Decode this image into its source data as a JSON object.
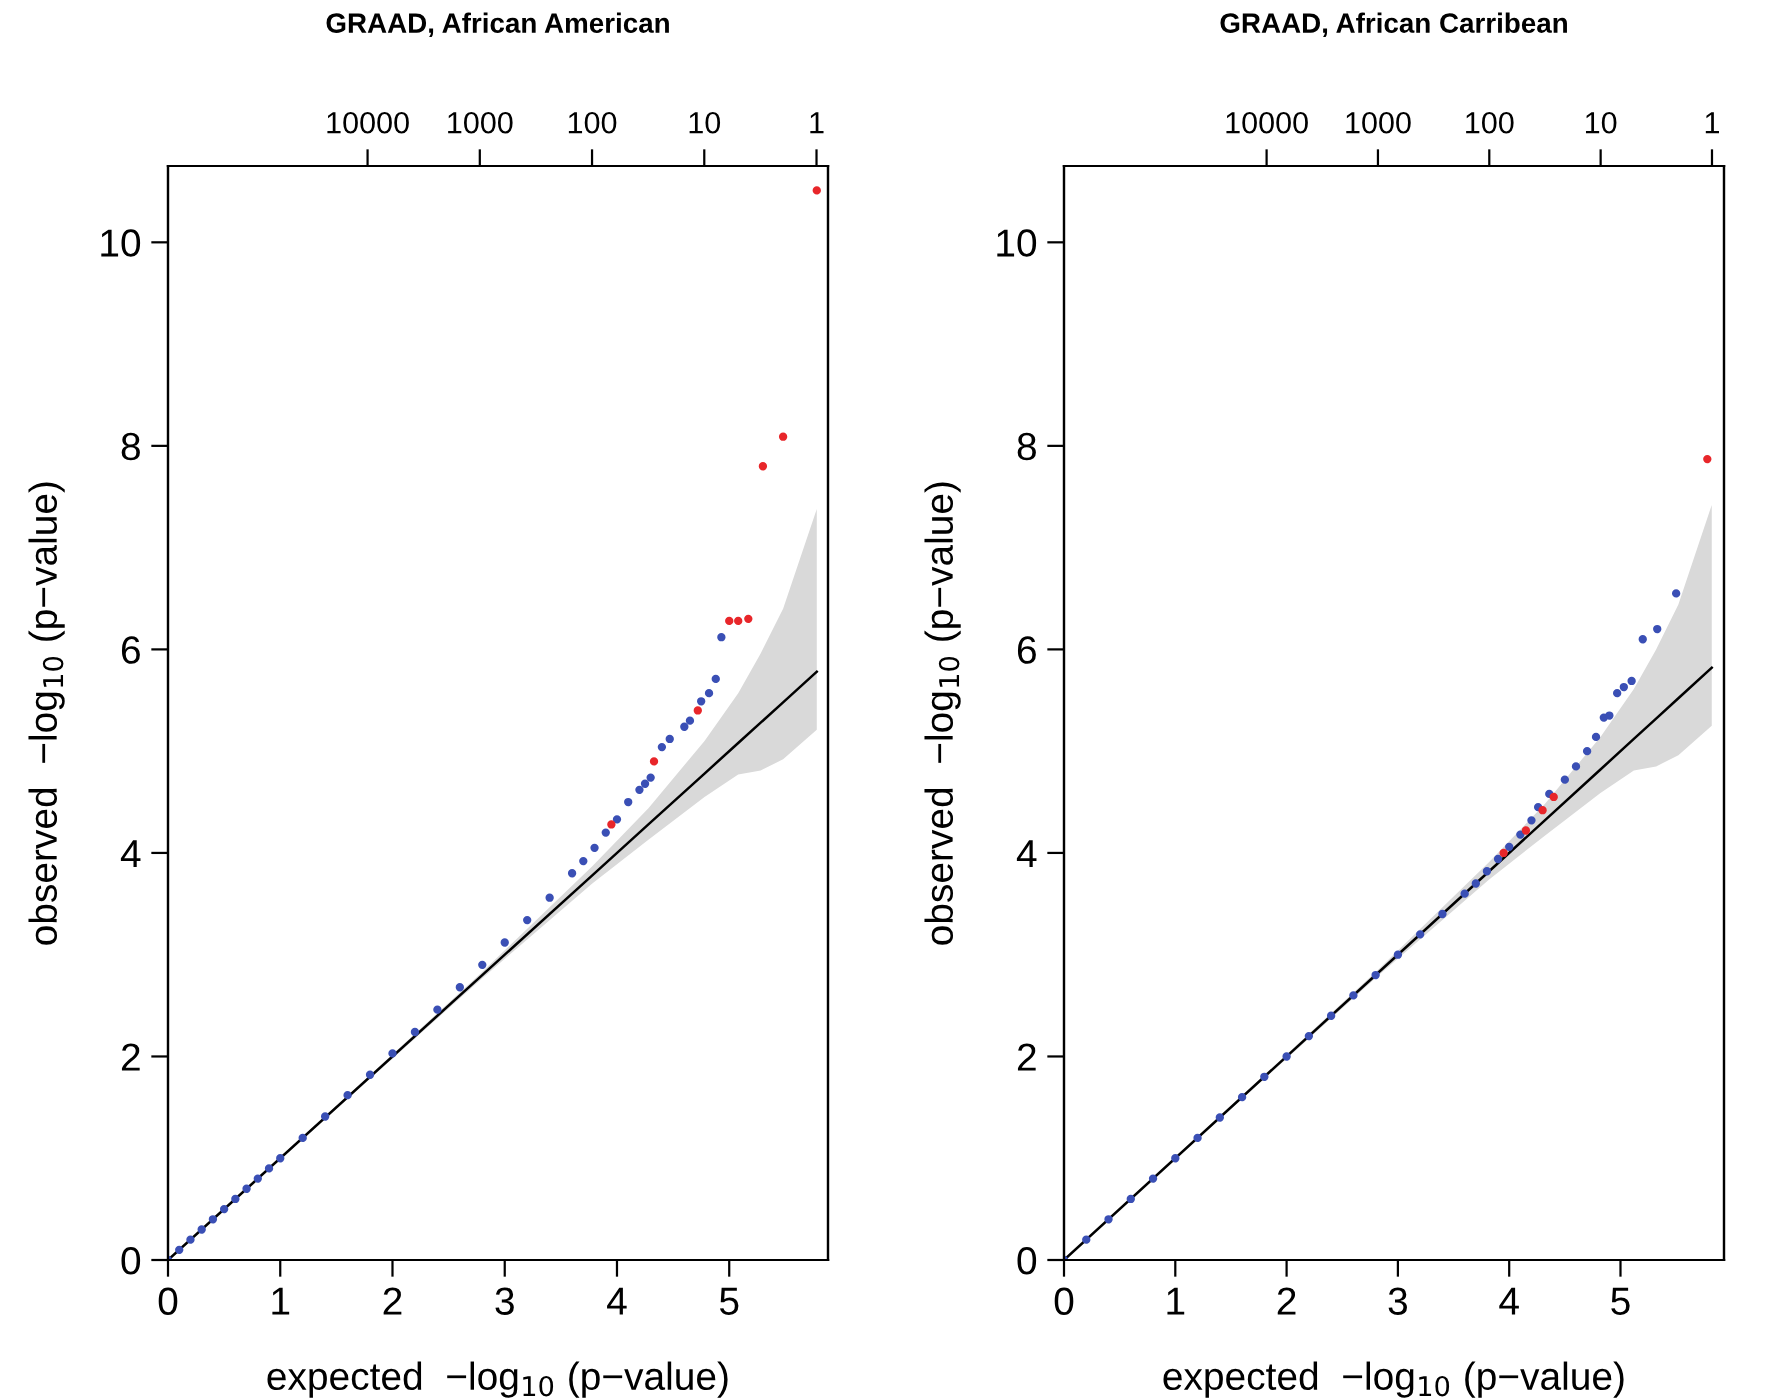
{
  "chart_data": [
    {
      "type": "scatter",
      "title": "GRAAD, African American",
      "xlabel": "expected  −log$_{10}$ (p−value)",
      "ylabel": "observed  −log$_{10}$ (p−value)",
      "marker": "circle",
      "xlim": [
        0,
        5.88
      ],
      "ylim": [
        0,
        10.75
      ],
      "xticks": [
        0,
        1,
        2,
        3,
        4,
        5
      ],
      "yticks": [
        0,
        2,
        4,
        6,
        8,
        10
      ],
      "log": "x2",
      "x2lim": [
        600000,
        0.79
      ],
      "x2ticks": [
        10000,
        1000,
        100,
        10,
        1
      ],
      "series": [
        {
          "type": "line",
          "marker": "none",
          "color": "#000000",
          "x": [
            0,
            2.78,
            3.78,
            4.28,
            4.78,
            5.08,
            5.28,
            5.48,
            5.78
          ],
          "values": [
            0,
            2.78,
            3.78,
            4.28,
            4.78,
            5.08,
            5.28,
            5.48,
            5.78
          ],
          "upper": [
            0,
            2.81,
            3.87,
            4.44,
            5.1,
            5.57,
            5.96,
            6.4,
            7.38
          ],
          "lower": [
            0,
            2.75,
            3.7,
            4.13,
            4.55,
            4.77,
            4.81,
            4.92,
            5.21
          ]
        },
        {
          "color": "#3a4fb5",
          "x": [
            0,
            0.1,
            0.2,
            0.3,
            0.4,
            0.5,
            0.6,
            0.7,
            0.8,
            0.9,
            1.0,
            1.2,
            1.4,
            1.6,
            1.8,
            2.0,
            2.2,
            2.4,
            2.6,
            2.8,
            3.0,
            3.2,
            3.4,
            3.6,
            3.7,
            3.8,
            3.9,
            4.0,
            4.1,
            4.2,
            4.25,
            4.3,
            4.4,
            4.47,
            4.6,
            4.65,
            4.75,
            4.82,
            4.88,
            4.93
          ],
          "values": [
            0,
            0.1,
            0.2,
            0.3,
            0.4,
            0.5,
            0.6,
            0.7,
            0.8,
            0.9,
            1.0,
            1.2,
            1.41,
            1.62,
            1.82,
            2.03,
            2.24,
            2.46,
            2.68,
            2.9,
            3.12,
            3.34,
            3.56,
            3.8,
            3.92,
            4.05,
            4.2,
            4.33,
            4.5,
            4.62,
            4.68,
            4.74,
            5.04,
            5.12,
            5.24,
            5.3,
            5.49,
            5.57,
            5.71,
            6.12
          ]
        },
        {
          "color": "#e8262a",
          "x": [
            3.95,
            4.33,
            4.72,
            5.0,
            5.08,
            5.17,
            5.3,
            5.48,
            5.78
          ],
          "values": [
            4.28,
            4.9,
            5.4,
            6.28,
            6.28,
            6.3,
            7.8,
            8.09,
            10.51
          ]
        }
      ]
    },
    {
      "type": "scatter",
      "title": "GRAAD, African Carribean",
      "xlabel": "expected  −log$_{10}$ (p−value)",
      "ylabel": "observed  −log$_{10}$ (p−value)",
      "marker": "circle",
      "xlim": [
        0,
        5.93
      ],
      "ylim": [
        0,
        10.75
      ],
      "xticks": [
        0,
        1,
        2,
        3,
        4,
        5
      ],
      "yticks": [
        0,
        2,
        4,
        6,
        8,
        10
      ],
      "log": "x2",
      "x2lim": [
        660000,
        0.78
      ],
      "x2ticks": [
        10000,
        1000,
        100,
        10,
        1
      ],
      "series": [
        {
          "type": "line",
          "marker": "none",
          "color": "#000000",
          "x": [
            0,
            2.82,
            3.82,
            4.32,
            4.82,
            5.12,
            5.32,
            5.52,
            5.82
          ],
          "values": [
            0,
            2.82,
            3.82,
            4.32,
            4.82,
            5.12,
            5.32,
            5.52,
            5.82
          ],
          "upper": [
            0,
            2.85,
            3.91,
            4.48,
            5.14,
            5.61,
            6.0,
            6.44,
            7.42
          ],
          "lower": [
            0,
            2.79,
            3.74,
            4.17,
            4.59,
            4.81,
            4.85,
            4.96,
            5.25
          ]
        },
        {
          "color": "#3a4fb5",
          "x": [
            0,
            0.2,
            0.4,
            0.6,
            0.8,
            1.0,
            1.2,
            1.4,
            1.6,
            1.8,
            2.0,
            2.2,
            2.4,
            2.6,
            2.8,
            3.0,
            3.2,
            3.4,
            3.6,
            3.7,
            3.8,
            3.9,
            4.0,
            4.1,
            4.2,
            4.26,
            4.36,
            4.5,
            4.6,
            4.7,
            4.78,
            4.85,
            4.9,
            4.97,
            5.03,
            5.1,
            5.2,
            5.33,
            5.5
          ],
          "values": [
            0,
            0.2,
            0.4,
            0.6,
            0.8,
            1.0,
            1.2,
            1.4,
            1.6,
            1.8,
            2.0,
            2.2,
            2.4,
            2.6,
            2.8,
            3.0,
            3.2,
            3.4,
            3.6,
            3.7,
            3.82,
            3.94,
            4.06,
            4.18,
            4.32,
            4.45,
            4.58,
            4.72,
            4.85,
            5.0,
            5.14,
            5.33,
            5.35,
            5.57,
            5.63,
            5.69,
            6.1,
            6.2,
            6.55
          ]
        },
        {
          "color": "#e8262a",
          "x": [
            3.95,
            4.15,
            4.3,
            4.4,
            5.78
          ],
          "values": [
            4.0,
            4.22,
            4.42,
            4.55,
            7.87
          ]
        }
      ]
    }
  ]
}
